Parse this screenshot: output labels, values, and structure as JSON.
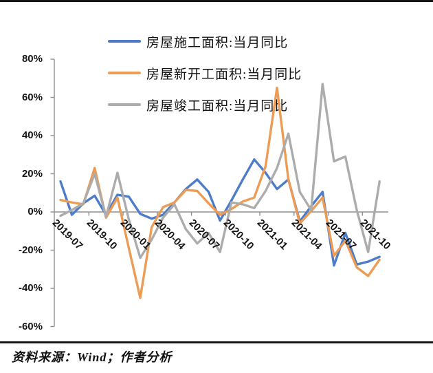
{
  "page": {
    "source_note": "资料来源：Wind；作者分析"
  },
  "chart_data": {
    "type": "line",
    "title": "",
    "xlabel": "",
    "ylabel": "",
    "grid": false,
    "legend_position": "top-center",
    "ylim": [
      -60,
      80
    ],
    "y_ticks": [
      "80%",
      "60%",
      "40%",
      "20%",
      "0%",
      "-20%",
      "-40%",
      "-60%"
    ],
    "y_tick_values": [
      80,
      60,
      40,
      20,
      0,
      -20,
      -40,
      -60
    ],
    "x": [
      "2019-07",
      "2019-08",
      "2019-09",
      "2019-10",
      "2019-11",
      "2019-12",
      "2020-01",
      "2020-02",
      "2020-03",
      "2020-04",
      "2020-05",
      "2020-06",
      "2020-07",
      "2020-08",
      "2020-09",
      "2020-10",
      "2020-11",
      "2020-12",
      "2021-01",
      "2021-02",
      "2021-03",
      "2021-04",
      "2021-05",
      "2021-06",
      "2021-07",
      "2021-08",
      "2021-09",
      "2021-10",
      "2021-11"
    ],
    "x_labels_shown": [
      "2019-07",
      "2019-10",
      "2020-01",
      "2020-04",
      "2020-07",
      "2020-10",
      "2021-01",
      "2021-04",
      "2021-07",
      "2021-10"
    ],
    "axis_color": "#8F8F8F",
    "series": [
      {
        "name": "房屋施工面积:当月同比",
        "color": "#4D7CC9",
        "values": [
          16,
          -1.5,
          4.5,
          8.5,
          -1.5,
          9,
          8,
          -1,
          -3.5,
          -1.5,
          5,
          12,
          17,
          10.5,
          -4.5,
          6,
          17,
          27.5,
          20.5,
          12,
          17,
          -5,
          3,
          10.5,
          -28,
          -11,
          -27.5,
          -26,
          -23.5
        ]
      },
      {
        "name": "房屋新开工面积:当月同比",
        "color": "#EC9C55",
        "values": [
          6.3,
          5,
          4,
          23,
          -3,
          7.5,
          -19,
          -45,
          -8,
          2.5,
          5,
          11.5,
          11,
          4.5,
          -1.5,
          1.5,
          5.5,
          7.5,
          24,
          65,
          17,
          -6,
          0.5,
          7.5,
          -23,
          -15,
          -29,
          -33.5,
          -25
        ]
      },
      {
        "name": "房屋竣工面积:当月同比",
        "color": "#ACACAC",
        "values": [
          -2,
          1,
          4.5,
          20,
          -2.5,
          20.5,
          -4,
          -24,
          -14.5,
          -3,
          4,
          -9,
          -16.5,
          -11,
          -21,
          5,
          4,
          2,
          11,
          23,
          41,
          10.5,
          1,
          67,
          26.5,
          29,
          1,
          -21,
          16
        ]
      }
    ]
  }
}
